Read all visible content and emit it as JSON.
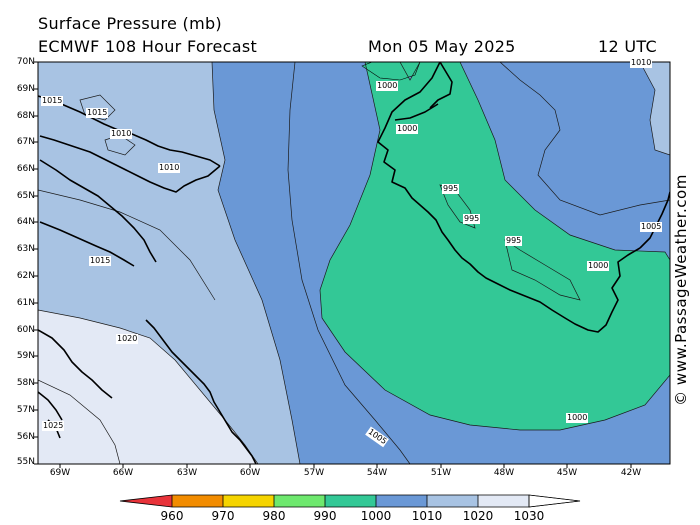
{
  "header": {
    "title": "Surface Pressure (mb)",
    "model": "ECMWF 108 Hour Forecast",
    "date": "Mon 05 May 2025",
    "hour": "12 UTC"
  },
  "credit": "© www.PassageWeather.com",
  "axes": {
    "lat_labels": [
      "70N",
      "69N",
      "68N",
      "67N",
      "66N",
      "65N",
      "64N",
      "63N",
      "62N",
      "61N",
      "60N",
      "59N",
      "58N",
      "57N",
      "56N",
      "55N"
    ],
    "lon_labels": [
      "69W",
      "66W",
      "63W",
      "60W",
      "57W",
      "54W",
      "51W",
      "48W",
      "45W",
      "42W"
    ]
  },
  "contour_labels": [
    "1015",
    "1015",
    "1010",
    "1010",
    "1000",
    "1000",
    "995",
    "995",
    "995",
    "1000",
    "1005",
    "1015",
    "1020",
    "1025",
    "1005",
    "1000",
    "1010"
  ],
  "colorbar": {
    "values": [
      "960",
      "970",
      "980",
      "990",
      "1000",
      "1010",
      "1020",
      "1030"
    ],
    "colors": [
      "#e8333a",
      "#f28c00",
      "#f5d400",
      "#6ee86e",
      "#33c896",
      "#6a98d6",
      "#a8c3e3",
      "#e3e9f5"
    ]
  },
  "map_colors": {
    "band_1000_1010": "#33c896",
    "band_1005_1010": "#6a98d6",
    "band_1010_1020": "#a8c3e3",
    "band_1020_1030": "#e3e9f5",
    "land_outline": "#000000"
  }
}
